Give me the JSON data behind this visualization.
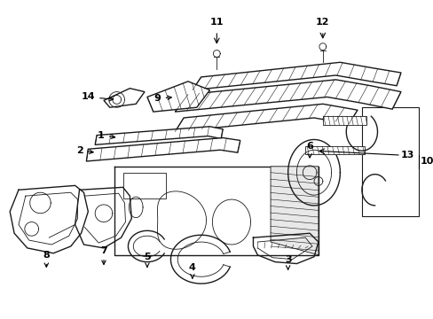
{
  "title": "",
  "background_color": "#ffffff",
  "line_color": "#1a1a1a",
  "figsize": [
    4.89,
    3.6
  ],
  "dpi": 100
}
